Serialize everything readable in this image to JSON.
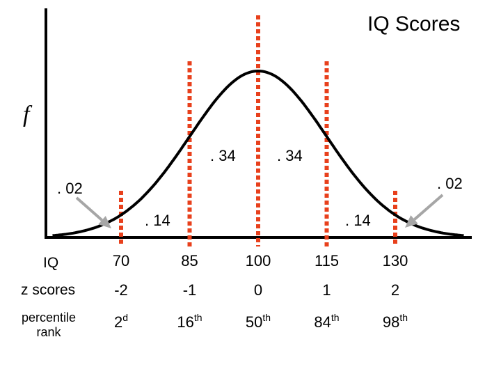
{
  "chart_data": {
    "type": "area",
    "title": "IQ Scores",
    "ylabel": "f",
    "distribution": {
      "mean": 100,
      "sd": 15
    },
    "xlim": [
      55,
      145
    ],
    "x_ticks": [
      70,
      85,
      100,
      115,
      130
    ],
    "proportions": [
      {
        "label": ". 02",
        "side": "left"
      },
      {
        "label": ". 14",
        "side": "left"
      },
      {
        "label": ". 34",
        "side": "left"
      },
      {
        "label": ". 34",
        "side": "right"
      },
      {
        "label": ". 14",
        "side": "right"
      },
      {
        "label": ". 02",
        "side": "right"
      }
    ],
    "table": {
      "row_labels": [
        "IQ",
        "z scores",
        "percentile rank"
      ],
      "iq": [
        "70",
        "85",
        "100",
        "115",
        "130"
      ],
      "z": [
        "-2",
        "-1",
        "0",
        "1",
        "2"
      ],
      "percentile": [
        {
          "num": "2",
          "suffix": "d"
        },
        {
          "num": "16",
          "suffix": "th"
        },
        {
          "num": "50",
          "suffix": "th"
        },
        {
          "num": "84",
          "suffix": "th"
        },
        {
          "num": "98",
          "suffix": "th"
        }
      ]
    },
    "colors": {
      "curve": "#000000",
      "markers": "#e8401c",
      "arrows": "#a6a6a6"
    }
  }
}
